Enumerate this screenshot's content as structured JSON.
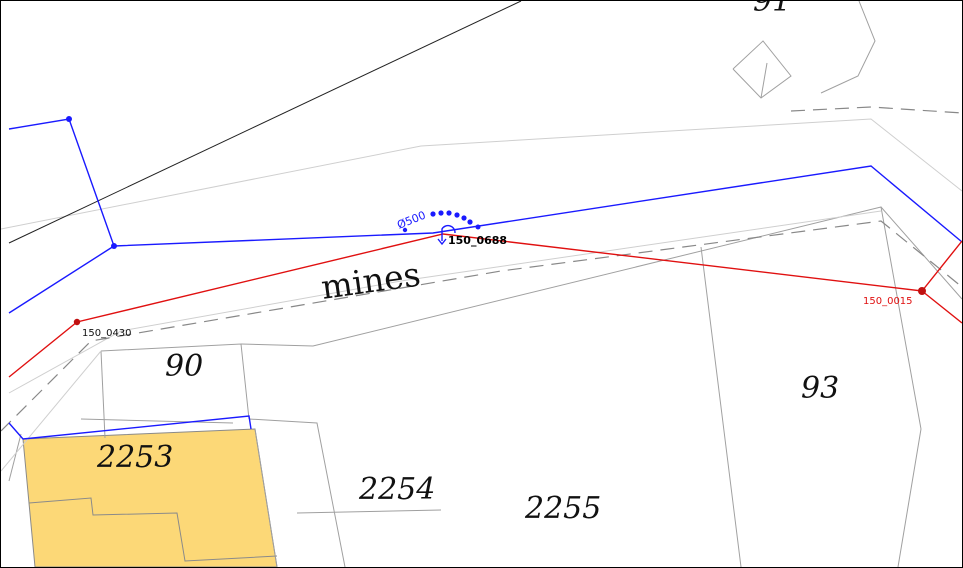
{
  "map": {
    "street_name": "mines",
    "parcel_labels": {
      "p90": "90",
      "p93": "93",
      "p2253": "2253",
      "p2254": "2254",
      "p2255": "2255",
      "p91_partial": "91"
    },
    "nodes": {
      "n0430": "150_0430",
      "n0688": "150_0688",
      "n0015": "150_0015"
    },
    "pipe_diameter": "Ø500",
    "colors": {
      "blue_network": "#1a1aff",
      "red_network": "#e01010",
      "building_fill": "#fcd877",
      "parcel_line": "#a0a0a0",
      "road_edge": "#c8c8c8",
      "dashed_axis": "#888888"
    }
  }
}
